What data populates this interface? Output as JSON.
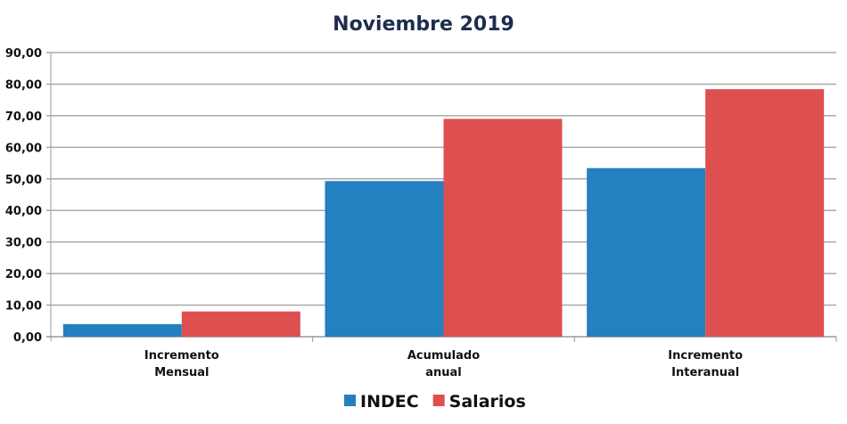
{
  "chart_data": {
    "type": "bar",
    "title": "Noviembre 2019",
    "categories": [
      [
        "Incremento",
        "Mensual"
      ],
      [
        "Acumulado",
        "anual"
      ],
      [
        "Incremento",
        "Interanual"
      ]
    ],
    "series": [
      {
        "name": "INDEC",
        "color": "#2480C0",
        "values": [
          4.0,
          49.3,
          53.4
        ]
      },
      {
        "name": "Salarios",
        "color": "#DE4F4F",
        "values": [
          8.0,
          69.0,
          78.4
        ]
      }
    ],
    "ylim": [
      0,
      90
    ],
    "yticks": [
      "0,00",
      "10,00",
      "20,00",
      "30,00",
      "40,00",
      "50,00",
      "60,00",
      "70,00",
      "80,00",
      "90,00"
    ],
    "grid": true,
    "legend": "bottom"
  }
}
